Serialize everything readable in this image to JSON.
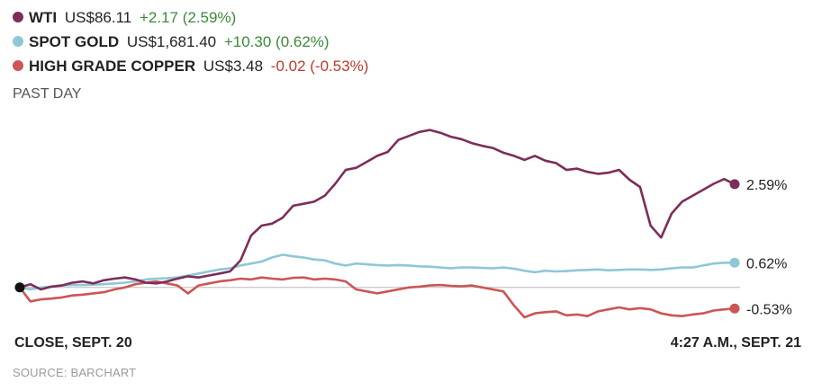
{
  "legend": [
    {
      "name": "WTI",
      "price": "US$86.11",
      "change": "+2.17 (2.59%)",
      "color": "#7c2d5a",
      "change_color": "#3a8a3a"
    },
    {
      "name": "SPOT GOLD",
      "price": "US$1,681.40",
      "change": "+10.30 (0.62%)",
      "color": "#8fc7d6",
      "change_color": "#3a8a3a"
    },
    {
      "name": "HIGH GRADE COPPER",
      "price": "US$3.48",
      "change": "-0.02 (-0.53%)",
      "color": "#cc5555",
      "change_color": "#c0392b"
    }
  ],
  "period_label": "PAST DAY",
  "x_start_label": "CLOSE, SEPT. 20",
  "x_end_label": "4:27 A.M., SEPT. 21",
  "source": "SOURCE: BARCHART",
  "chart_data": {
    "type": "line",
    "y_unit": "% change",
    "ylim": [
      -1.2,
      4.55
    ],
    "baseline": 0,
    "series": [
      {
        "name": "WTI",
        "color": "#7c2d5a",
        "end_label": "2.59%",
        "values": [
          0.0,
          0.08,
          -0.05,
          0.02,
          0.05,
          0.12,
          0.15,
          0.1,
          0.18,
          0.22,
          0.25,
          0.2,
          0.12,
          0.1,
          0.15,
          0.22,
          0.28,
          0.25,
          0.3,
          0.35,
          0.4,
          0.68,
          1.3,
          1.55,
          1.6,
          1.75,
          2.05,
          2.1,
          2.15,
          2.3,
          2.6,
          2.95,
          3.0,
          3.15,
          3.3,
          3.4,
          3.7,
          3.8,
          3.9,
          3.95,
          3.88,
          3.78,
          3.72,
          3.62,
          3.55,
          3.5,
          3.38,
          3.3,
          3.2,
          3.3,
          3.18,
          3.12,
          2.95,
          2.98,
          2.9,
          2.85,
          2.88,
          2.95,
          2.7,
          2.52,
          1.55,
          1.25,
          1.85,
          2.15,
          2.3,
          2.45,
          2.6,
          2.72,
          2.59
        ]
      },
      {
        "name": "SPOT GOLD",
        "color": "#8fc7d6",
        "end_label": "0.62%",
        "values": [
          0.0,
          -0.05,
          0.0,
          0.02,
          0.05,
          0.06,
          0.06,
          0.07,
          0.08,
          0.1,
          0.12,
          0.15,
          0.2,
          0.22,
          0.23,
          0.25,
          0.3,
          0.35,
          0.4,
          0.45,
          0.48,
          0.55,
          0.6,
          0.65,
          0.75,
          0.82,
          0.78,
          0.75,
          0.7,
          0.68,
          0.6,
          0.55,
          0.6,
          0.58,
          0.56,
          0.55,
          0.56,
          0.55,
          0.53,
          0.52,
          0.5,
          0.48,
          0.5,
          0.5,
          0.49,
          0.48,
          0.5,
          0.47,
          0.42,
          0.38,
          0.42,
          0.4,
          0.41,
          0.43,
          0.44,
          0.45,
          0.43,
          0.44,
          0.45,
          0.45,
          0.44,
          0.45,
          0.48,
          0.5,
          0.5,
          0.55,
          0.6,
          0.62,
          0.62
        ]
      },
      {
        "name": "HIGH GRADE COPPER",
        "color": "#cc5555",
        "end_label": "-0.53%",
        "values": [
          0.0,
          -0.35,
          -0.3,
          -0.28,
          -0.25,
          -0.2,
          -0.18,
          -0.15,
          -0.12,
          -0.05,
          0.0,
          0.08,
          0.12,
          0.15,
          0.1,
          0.05,
          -0.15,
          0.05,
          0.1,
          0.15,
          0.18,
          0.22,
          0.2,
          0.25,
          0.22,
          0.2,
          0.24,
          0.25,
          0.2,
          0.22,
          0.2,
          0.15,
          -0.05,
          -0.1,
          -0.15,
          -0.1,
          -0.05,
          0.0,
          0.02,
          0.05,
          0.06,
          0.04,
          0.03,
          0.05,
          0.0,
          -0.05,
          -0.1,
          -0.45,
          -0.75,
          -0.65,
          -0.62,
          -0.6,
          -0.7,
          -0.68,
          -0.72,
          -0.6,
          -0.55,
          -0.5,
          -0.55,
          -0.52,
          -0.55,
          -0.65,
          -0.7,
          -0.72,
          -0.68,
          -0.65,
          -0.58,
          -0.55,
          -0.53
        ]
      }
    ]
  }
}
